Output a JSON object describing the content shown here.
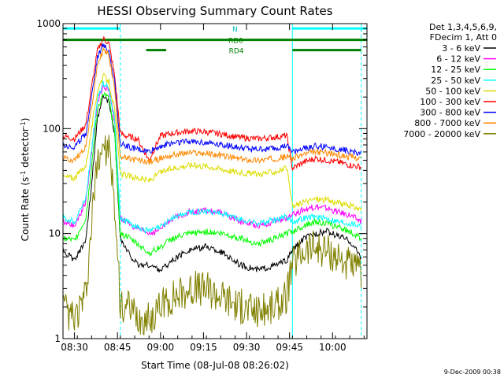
{
  "chart_data": {
    "type": "line",
    "title": "HESSI Observing Summary Count Rates",
    "xlabel": "Start Time (08-Jul-08 08:26:02)",
    "ylabel_main": "Count Rate (s",
    "ylabel_sup1": "-1",
    "ylabel_mid": " detector",
    "ylabel_sup2": "-1",
    "ylabel_end": ")",
    "footer_date": "9-Dec-2009 00:38",
    "yscale": "log",
    "ylim": [
      1,
      1000
    ],
    "xlim_min": [
      26,
      132
    ],
    "x_ticks": [
      {
        "min": 30,
        "label": "08:30"
      },
      {
        "min": 45,
        "label": "08:45"
      },
      {
        "min": 60,
        "label": "09:00"
      },
      {
        "min": 75,
        "label": "09:15"
      },
      {
        "min": 90,
        "label": "09:30"
      },
      {
        "min": 105,
        "label": "09:45"
      },
      {
        "min": 120,
        "label": "10:00"
      }
    ],
    "y_ticks": [
      {
        "v": 1,
        "label": "1"
      },
      {
        "v": 10,
        "label": "10"
      },
      {
        "v": 100,
        "label": "100"
      },
      {
        "v": 1000,
        "label": "1000"
      }
    ],
    "legend_header": [
      "Det 1,3,4,5,6,9,",
      "FDecim 1, Att 0"
    ],
    "flags": [
      {
        "label": "N",
        "color": "#00ffff",
        "segments": [
          [
            26,
            46
          ],
          [
            106,
            132
          ]
        ],
        "level": 900
      },
      {
        "label": "RD0",
        "color": "#008000",
        "segments": [
          [
            26,
            132
          ]
        ],
        "level": 700
      },
      {
        "label": "RD4",
        "color": "#008000",
        "segments": [
          [
            55,
            62
          ],
          [
            106,
            130
          ]
        ],
        "level": 560
      }
    ],
    "night_boundaries": [
      26,
      46,
      106,
      130
    ],
    "series": [
      {
        "name": "3 - 6 keV",
        "color": "#000000",
        "x": [
          26,
          30,
          34,
          36,
          38,
          40,
          42,
          44,
          46,
          48,
          52,
          56,
          60,
          64,
          70,
          76,
          82,
          88,
          94,
          100,
          104,
          106,
          110,
          114,
          118,
          122,
          126,
          130
        ],
        "y": [
          7,
          5.5,
          9,
          30,
          120,
          200,
          180,
          90,
          9,
          7,
          5,
          5,
          4.5,
          5.5,
          7,
          7.5,
          6.5,
          5,
          4.5,
          5,
          5.5,
          7,
          9,
          10,
          10.5,
          9.5,
          8.5,
          6
        ]
      },
      {
        "name": "6 - 12 keV",
        "color": "#ff00ff",
        "x": [
          26,
          30,
          34,
          36,
          38,
          40,
          42,
          44,
          46,
          48,
          52,
          56,
          60,
          64,
          70,
          76,
          82,
          88,
          94,
          100,
          104,
          106,
          110,
          114,
          118,
          122,
          126,
          130
        ],
        "y": [
          13,
          12,
          20,
          60,
          180,
          260,
          230,
          120,
          14,
          13,
          11,
          10,
          11,
          14,
          16,
          16.5,
          15.5,
          13,
          12,
          13,
          14,
          15,
          17,
          18,
          17.5,
          16,
          15,
          13
        ]
      },
      {
        "name": "12 - 25 keV",
        "color": "#00ff00",
        "x": [
          26,
          30,
          34,
          36,
          38,
          40,
          42,
          44,
          46,
          48,
          52,
          56,
          60,
          64,
          70,
          76,
          82,
          88,
          94,
          100,
          104,
          106,
          110,
          114,
          118,
          122,
          126,
          130
        ],
        "y": [
          9,
          8.5,
          14,
          45,
          150,
          220,
          190,
          90,
          10,
          9.5,
          8,
          6.5,
          7.5,
          9,
          10,
          10.5,
          10,
          9,
          8,
          9,
          10,
          10.5,
          12,
          13,
          12.5,
          11.5,
          10.5,
          9
        ]
      },
      {
        "name": "25 - 50 keV",
        "color": "#00ffff",
        "x": [
          26,
          30,
          34,
          36,
          38,
          40,
          42,
          44,
          46,
          48,
          52,
          56,
          60,
          64,
          70,
          76,
          82,
          88,
          94,
          100,
          104,
          106,
          110,
          114,
          118,
          122,
          126,
          130
        ],
        "y": [
          14,
          13,
          22,
          65,
          190,
          270,
          240,
          125,
          14,
          13,
          11.5,
          10.5,
          11.5,
          14,
          16,
          16.5,
          15.5,
          13.5,
          12.5,
          13.5,
          14.5,
          13,
          14,
          14.5,
          14,
          13,
          12.5,
          12
        ]
      },
      {
        "name": "50 - 100 keV",
        "color": "#dddd00",
        "x": [
          26,
          30,
          34,
          36,
          38,
          40,
          42,
          44,
          46,
          48,
          52,
          56,
          60,
          64,
          70,
          76,
          82,
          88,
          94,
          100,
          104,
          106,
          110,
          114,
          118,
          122,
          126,
          130
        ],
        "y": [
          35,
          34,
          45,
          100,
          230,
          320,
          280,
          150,
          37,
          36,
          34,
          32,
          38,
          42,
          45,
          44,
          41,
          38,
          37,
          39,
          42,
          18,
          20,
          21.5,
          21,
          19.5,
          18.5,
          17
        ]
      },
      {
        "name": "100 - 300 keV",
        "color": "#ff0000",
        "x": [
          26,
          30,
          34,
          36,
          38,
          40,
          42,
          44,
          46,
          48,
          52,
          56,
          60,
          64,
          70,
          76,
          82,
          88,
          94,
          100,
          104,
          106,
          110,
          114,
          118,
          122,
          126,
          130
        ],
        "y": [
          85,
          80,
          110,
          250,
          550,
          720,
          650,
          320,
          90,
          85,
          80,
          50,
          85,
          90,
          95,
          93,
          88,
          82,
          80,
          83,
          86,
          42,
          48,
          52,
          50,
          48,
          45,
          43
        ]
      },
      {
        "name": "300 - 800 keV",
        "color": "#0000ff",
        "x": [
          26,
          30,
          34,
          36,
          38,
          40,
          42,
          44,
          46,
          48,
          52,
          56,
          60,
          64,
          70,
          76,
          82,
          88,
          94,
          100,
          104,
          106,
          110,
          114,
          118,
          122,
          126,
          130
        ],
        "y": [
          70,
          66,
          90,
          210,
          480,
          630,
          560,
          280,
          72,
          68,
          63,
          60,
          68,
          73,
          76,
          74,
          70,
          65,
          63,
          65,
          68,
          60,
          65,
          68,
          67,
          64,
          61,
          58
        ]
      },
      {
        "name": "800 - 7000 keV",
        "color": "#ff8800",
        "x": [
          26,
          30,
          34,
          36,
          38,
          40,
          42,
          44,
          46,
          48,
          52,
          56,
          60,
          64,
          70,
          76,
          82,
          88,
          94,
          100,
          104,
          106,
          110,
          114,
          118,
          122,
          126,
          130
        ],
        "y": [
          52,
          50,
          68,
          160,
          400,
          560,
          500,
          240,
          55,
          52,
          50,
          48,
          52,
          56,
          59,
          58,
          55,
          51,
          50,
          52,
          54,
          52,
          57,
          60,
          59,
          56,
          54,
          52
        ]
      },
      {
        "name": "7000 - 20000 keV",
        "color": "#808000",
        "x": [
          26,
          30,
          34,
          36,
          38,
          40,
          42,
          44,
          46,
          48,
          52,
          56,
          60,
          64,
          70,
          76,
          82,
          88,
          94,
          100,
          104,
          106,
          110,
          114,
          118,
          122,
          126,
          130
        ],
        "y": [
          2,
          1.5,
          2.5,
          12,
          50,
          70,
          60,
          20,
          2,
          2,
          1.5,
          1.5,
          2,
          2.5,
          3,
          3,
          2.5,
          2,
          1.8,
          2,
          2.5,
          5,
          7,
          7.5,
          7,
          6,
          5,
          4
        ]
      }
    ]
  }
}
